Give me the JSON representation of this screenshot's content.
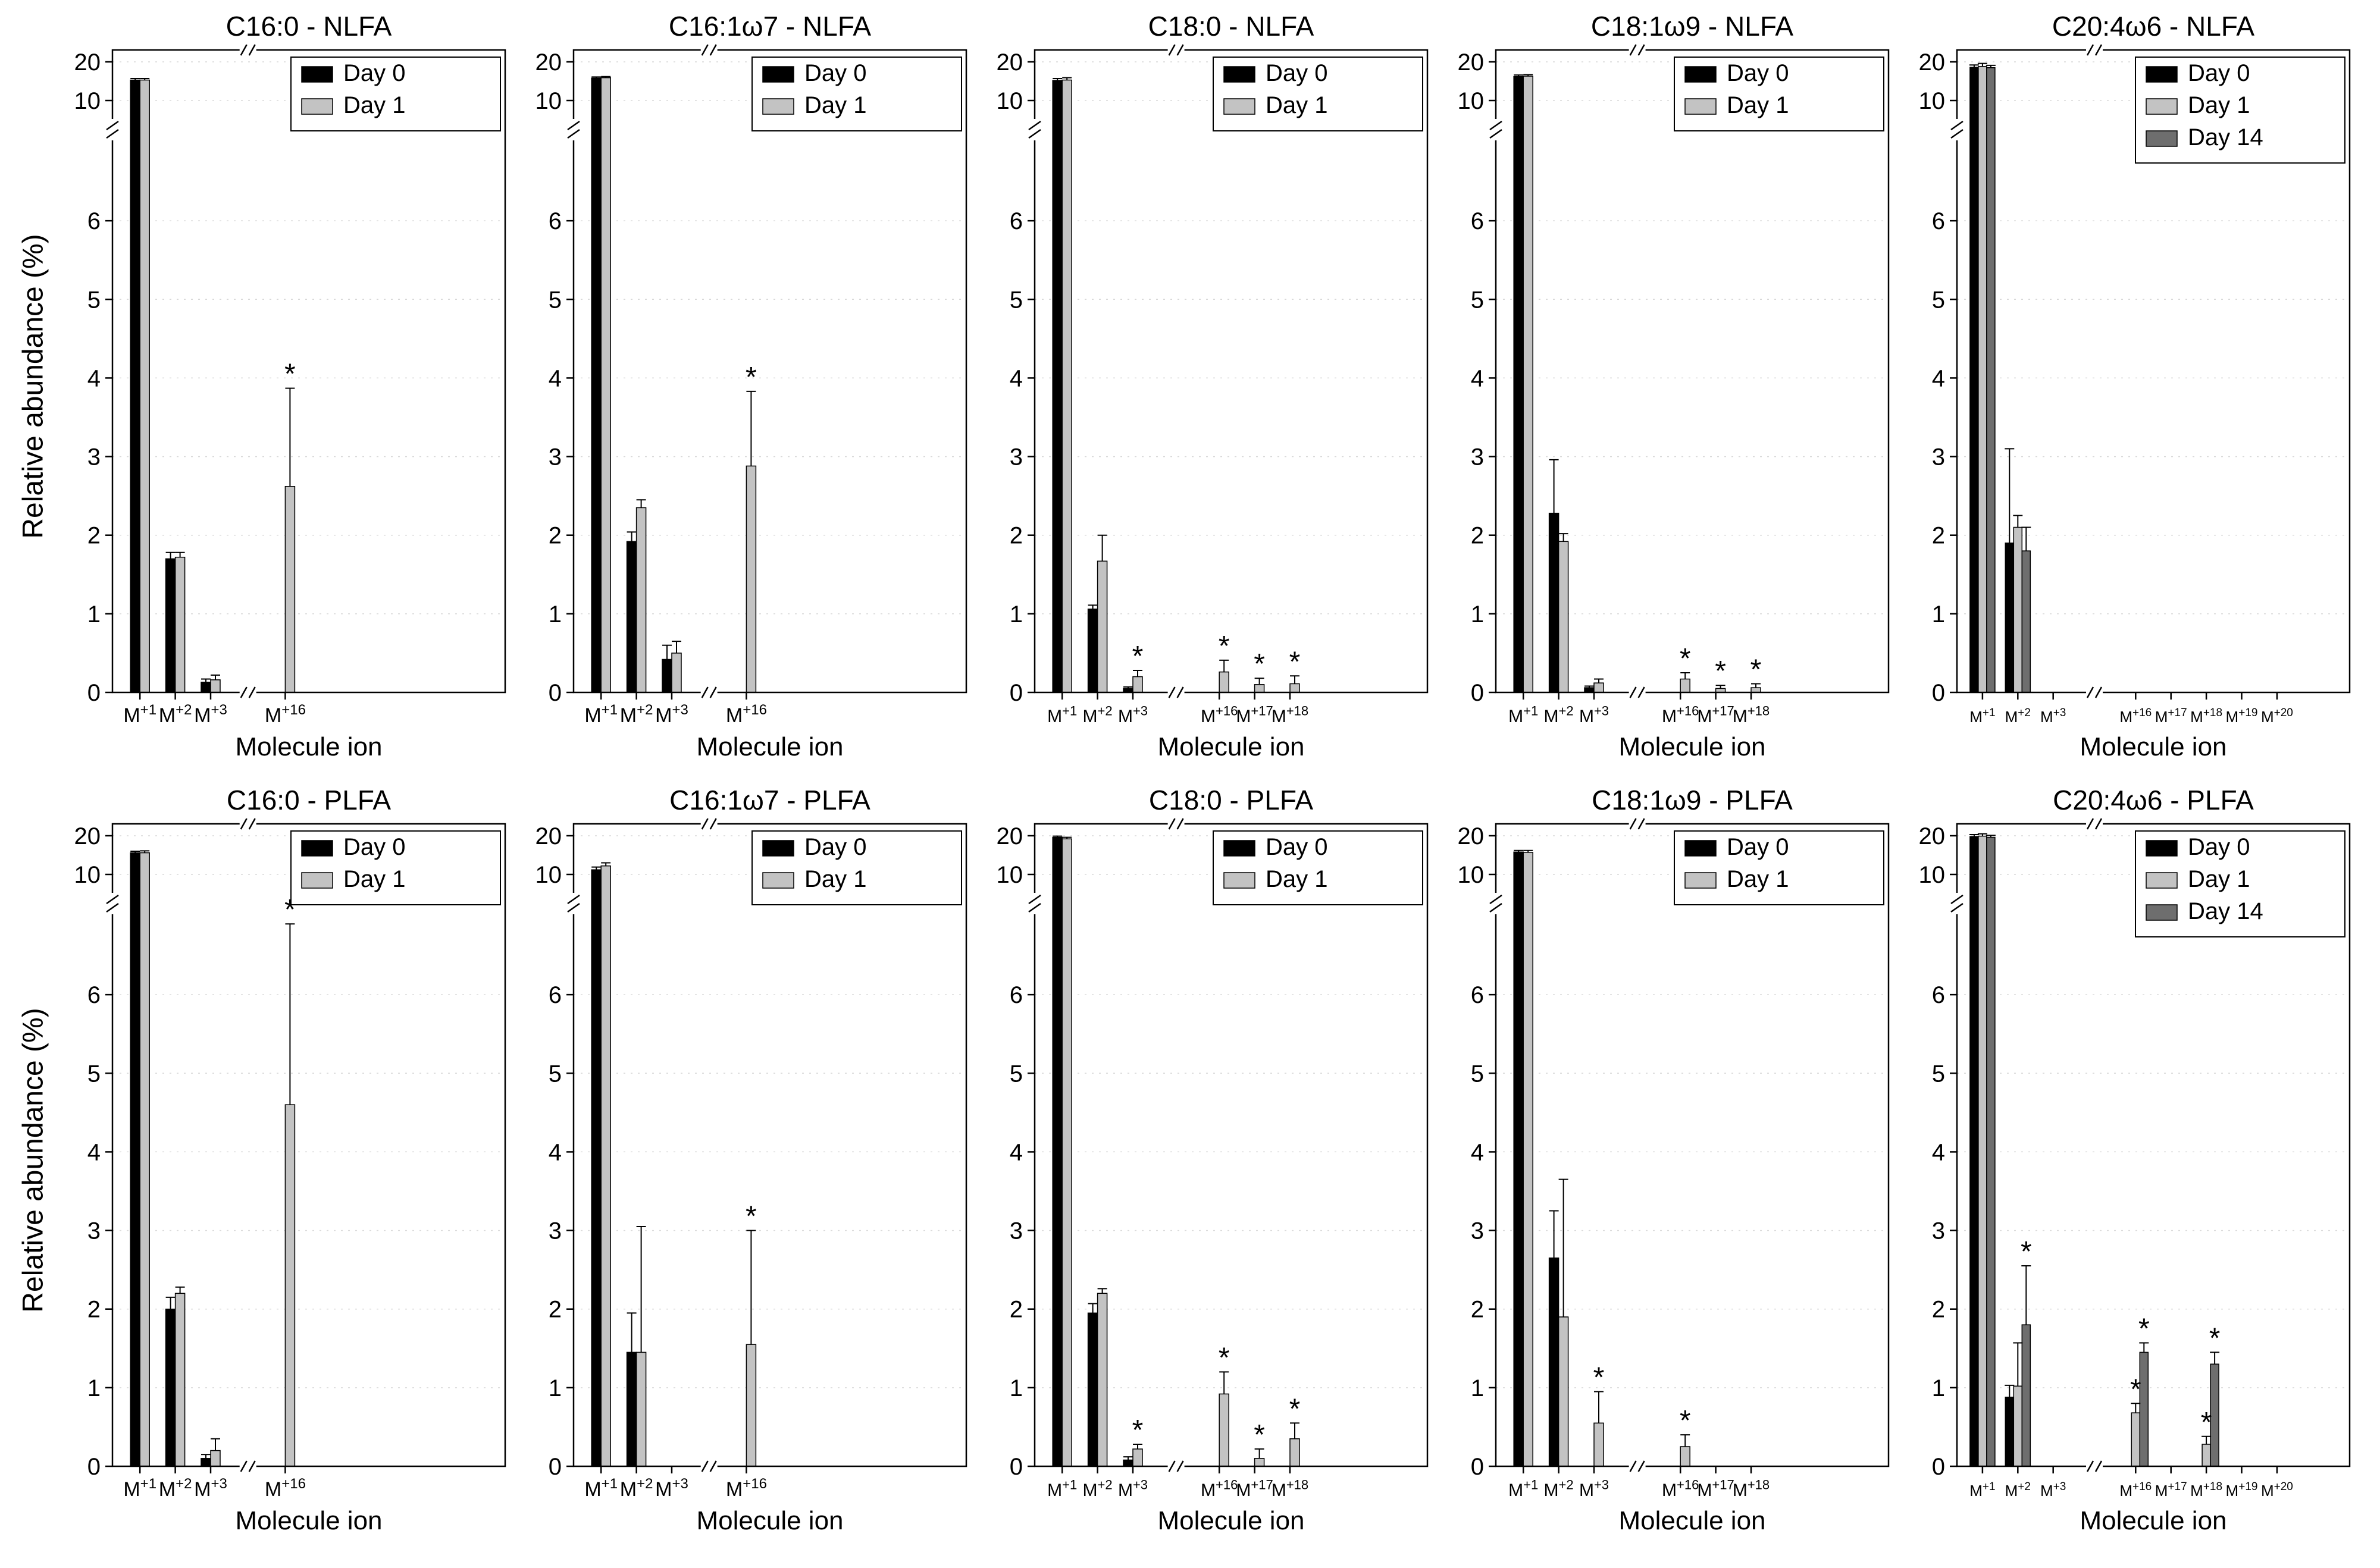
{
  "figure_labels": {
    "y_axis": "Relative abundance (%)",
    "x_axis": "Molecule ion"
  },
  "axis": {
    "ylim": [
      0,
      20
    ],
    "y_ticks_lower": [
      0,
      1,
      2,
      3,
      4,
      5,
      6
    ],
    "y_ticks_upper": [
      10,
      20
    ],
    "y_break_between": [
      7,
      10
    ],
    "grid": "dashed-horizontal"
  },
  "legend_colors": {
    "Day 0": "#000000",
    "Day 1": "#c3c3c3",
    "Day 14": "#6e6e6e"
  },
  "chart_data": [
    {
      "type": "bar",
      "title": "C16:0 - NLFA",
      "categories": [
        "M+1",
        "M+2",
        "M+3",
        "M+16"
      ],
      "x_break_after_index": 2,
      "legend": [
        "Day 0",
        "Day 1"
      ],
      "series": [
        {
          "name": "Day 0",
          "values": [
            15.3,
            1.7,
            0.13,
            0
          ],
          "errors": [
            0.4,
            0.08,
            0.04,
            0
          ],
          "stars": [
            0,
            0,
            0,
            0
          ]
        },
        {
          "name": "Day 1",
          "values": [
            15.3,
            1.72,
            0.16,
            2.62
          ],
          "errors": [
            0.4,
            0.06,
            0.06,
            1.25
          ],
          "stars": [
            0,
            0,
            0,
            1
          ]
        }
      ]
    },
    {
      "type": "bar",
      "title": "C16:1ω7 - NLFA",
      "categories": [
        "M+1",
        "M+2",
        "M+3",
        "M+16"
      ],
      "x_break_after_index": 2,
      "legend": [
        "Day 0",
        "Day 1"
      ],
      "series": [
        {
          "name": "Day 0",
          "values": [
            15.8,
            1.92,
            0.42,
            0
          ],
          "errors": [
            0.3,
            0.12,
            0.18,
            0
          ],
          "stars": [
            0,
            0,
            0,
            0
          ]
        },
        {
          "name": "Day 1",
          "values": [
            15.9,
            2.35,
            0.5,
            2.88
          ],
          "errors": [
            0.3,
            0.1,
            0.15,
            0.95
          ],
          "stars": [
            0,
            0,
            0,
            1
          ]
        }
      ]
    },
    {
      "type": "bar",
      "title": "C18:0 - NLFA",
      "categories": [
        "M+1",
        "M+2",
        "M+3",
        "M+16",
        "M+17",
        "M+18"
      ],
      "x_break_after_index": 2,
      "legend": [
        "Day 0",
        "Day 1"
      ],
      "series": [
        {
          "name": "Day 0",
          "values": [
            15.2,
            1.06,
            0.05,
            0,
            0,
            0
          ],
          "errors": [
            0.5,
            0.05,
            0.02,
            0,
            0,
            0
          ],
          "stars": [
            0,
            0,
            0,
            0,
            0,
            0
          ]
        },
        {
          "name": "Day 1",
          "values": [
            15.3,
            1.67,
            0.2,
            0.26,
            0.1,
            0.11
          ],
          "errors": [
            0.6,
            0.33,
            0.08,
            0.15,
            0.08,
            0.1
          ],
          "stars": [
            0,
            0,
            1,
            1,
            1,
            1
          ]
        }
      ]
    },
    {
      "type": "bar",
      "title": "C18:1ω9 - NLFA",
      "categories": [
        "M+1",
        "M+2",
        "M+3",
        "M+16",
        "M+17",
        "M+18"
      ],
      "x_break_after_index": 2,
      "legend": [
        "Day 0",
        "Day 1"
      ],
      "series": [
        {
          "name": "Day 0",
          "values": [
            16.2,
            2.28,
            0.06,
            0,
            0,
            0
          ],
          "errors": [
            0.4,
            0.68,
            0.02,
            0,
            0,
            0
          ],
          "stars": [
            0,
            0,
            0,
            0,
            0,
            0
          ]
        },
        {
          "name": "Day 1",
          "values": [
            16.3,
            1.92,
            0.12,
            0.17,
            0.05,
            0.06
          ],
          "errors": [
            0.4,
            0.1,
            0.05,
            0.08,
            0.04,
            0.05
          ],
          "stars": [
            0,
            0,
            0,
            1,
            1,
            1
          ]
        }
      ]
    },
    {
      "type": "bar",
      "title": "C20:4ω6 - NLFA",
      "categories": [
        "M+1",
        "M+2",
        "M+3",
        "M+16",
        "M+17",
        "M+18",
        "M+19",
        "M+20"
      ],
      "x_break_after_index": 2,
      "legend": [
        "Day 0",
        "Day 1",
        "Day 14"
      ],
      "series": [
        {
          "name": "Day 0",
          "values": [
            18.6,
            1.9,
            0,
            0,
            0,
            0,
            0,
            0
          ],
          "errors": [
            0.6,
            1.2,
            0,
            0,
            0,
            0,
            0,
            0
          ],
          "stars": [
            0,
            0,
            0,
            0,
            0,
            0,
            0,
            0
          ]
        },
        {
          "name": "Day 1",
          "values": [
            18.8,
            2.1,
            0,
            0,
            0,
            0,
            0,
            0
          ],
          "errors": [
            0.8,
            0.15,
            0,
            0,
            0,
            0,
            0,
            0
          ],
          "stars": [
            0,
            0,
            0,
            0,
            0,
            0,
            0,
            0
          ]
        },
        {
          "name": "Day 14",
          "values": [
            18.5,
            1.8,
            0,
            0,
            0,
            0,
            0,
            0
          ],
          "errors": [
            0.6,
            0.3,
            0,
            0,
            0,
            0,
            0,
            0
          ],
          "stars": [
            0,
            0,
            0,
            0,
            0,
            0,
            0,
            0
          ]
        }
      ]
    },
    {
      "type": "bar",
      "title": "C16:0 - PLFA",
      "categories": [
        "M+1",
        "M+2",
        "M+3",
        "M+16"
      ],
      "x_break_after_index": 2,
      "legend": [
        "Day 0",
        "Day 1"
      ],
      "series": [
        {
          "name": "Day 0",
          "values": [
            15.6,
            2.0,
            0.1,
            0
          ],
          "errors": [
            0.4,
            0.15,
            0.05,
            0
          ],
          "stars": [
            0,
            0,
            0,
            0
          ]
        },
        {
          "name": "Day 1",
          "values": [
            15.6,
            2.2,
            0.2,
            4.6
          ],
          "errors": [
            0.5,
            0.08,
            0.15,
            2.3
          ],
          "stars": [
            0,
            0,
            0,
            1
          ]
        }
      ]
    },
    {
      "type": "bar",
      "title": "C16:1ω7 - PLFA",
      "categories": [
        "M+1",
        "M+2",
        "M+3",
        "M+16"
      ],
      "x_break_after_index": 2,
      "legend": [
        "Day 0",
        "Day 1"
      ],
      "series": [
        {
          "name": "Day 0",
          "values": [
            11.2,
            1.45,
            0,
            0
          ],
          "errors": [
            0.7,
            0.5,
            0,
            0
          ],
          "stars": [
            0,
            0,
            0,
            0
          ]
        },
        {
          "name": "Day 1",
          "values": [
            12.2,
            1.45,
            0,
            1.55
          ],
          "errors": [
            0.8,
            1.6,
            0,
            1.45
          ],
          "stars": [
            0,
            0,
            0,
            1
          ]
        }
      ]
    },
    {
      "type": "bar",
      "title": "C18:0 - PLFA",
      "categories": [
        "M+1",
        "M+2",
        "M+3",
        "M+16",
        "M+17",
        "M+18"
      ],
      "x_break_after_index": 2,
      "legend": [
        "Day 0",
        "Day 1"
      ],
      "series": [
        {
          "name": "Day 0",
          "values": [
            19.6,
            1.95,
            0.08,
            0,
            0,
            0
          ],
          "errors": [
            0.3,
            0.12,
            0.04,
            0,
            0,
            0
          ],
          "stars": [
            0,
            0,
            0,
            0,
            0,
            0
          ]
        },
        {
          "name": "Day 1",
          "values": [
            19.2,
            2.2,
            0.22,
            0.92,
            0.1,
            0.35
          ],
          "errors": [
            0.4,
            0.06,
            0.06,
            0.28,
            0.12,
            0.2
          ],
          "stars": [
            0,
            0,
            1,
            1,
            1,
            1
          ]
        }
      ]
    },
    {
      "type": "bar",
      "title": "C18:1ω9 - PLFA",
      "categories": [
        "M+1",
        "M+2",
        "M+3",
        "M+16",
        "M+17",
        "M+18"
      ],
      "x_break_after_index": 2,
      "legend": [
        "Day 0",
        "Day 1"
      ],
      "series": [
        {
          "name": "Day 0",
          "values": [
            15.8,
            2.65,
            0,
            0,
            0,
            0
          ],
          "errors": [
            0.4,
            0.6,
            0,
            0,
            0,
            0
          ],
          "stars": [
            0,
            0,
            0,
            0,
            0,
            0
          ]
        },
        {
          "name": "Day 1",
          "values": [
            15.7,
            1.9,
            0.55,
            0.25,
            0,
            0
          ],
          "errors": [
            0.5,
            1.75,
            0.4,
            0.15,
            0,
            0
          ],
          "stars": [
            0,
            0,
            1,
            1,
            0,
            0
          ]
        }
      ]
    },
    {
      "type": "bar",
      "title": "C20:4ω6 - PLFA",
      "categories": [
        "M+1",
        "M+2",
        "M+3",
        "M+16",
        "M+17",
        "M+18",
        "M+19",
        "M+20"
      ],
      "x_break_after_index": 2,
      "legend": [
        "Day 0",
        "Day 1",
        "Day 14"
      ],
      "series": [
        {
          "name": "Day 0",
          "values": [
            19.8,
            0.88,
            0,
            0,
            0,
            0,
            0,
            0
          ],
          "errors": [
            0.5,
            0.15,
            0,
            0,
            0,
            0,
            0,
            0
          ],
          "stars": [
            0,
            0,
            0,
            0,
            0,
            0,
            0,
            0
          ]
        },
        {
          "name": "Day 1",
          "values": [
            19.9,
            1.02,
            0,
            0.68,
            0,
            0.28,
            0,
            0
          ],
          "errors": [
            0.6,
            0.55,
            0,
            0.12,
            0,
            0.1,
            0,
            0
          ],
          "stars": [
            0,
            0,
            0,
            1,
            0,
            1,
            0,
            0
          ]
        },
        {
          "name": "Day 14",
          "values": [
            19.6,
            1.8,
            0,
            1.45,
            0,
            1.3,
            0,
            0
          ],
          "errors": [
            0.5,
            0.75,
            0,
            0.12,
            0,
            0.15,
            0,
            0
          ],
          "stars": [
            0,
            1,
            0,
            1,
            0,
            1,
            0,
            0
          ]
        }
      ]
    }
  ]
}
